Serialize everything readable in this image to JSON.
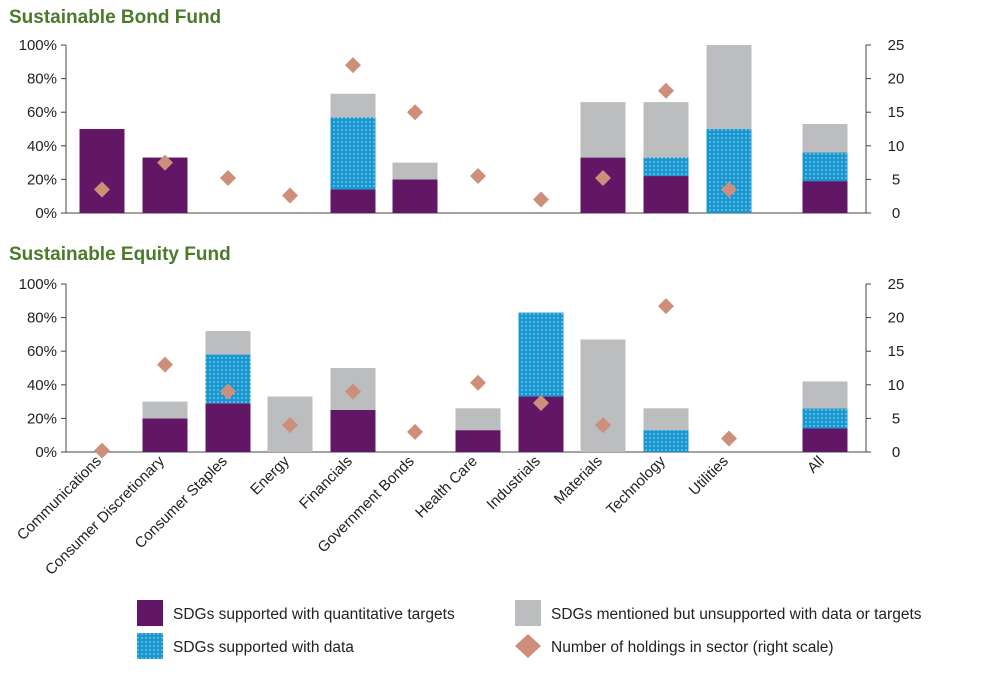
{
  "colors": {
    "quantitative": "#611766",
    "data": "#1896d0",
    "data_dots": "#bfe6f5",
    "mentioned": "#bcbdbf",
    "holdings": "#cd8f7a",
    "title": "#4c7a2b",
    "axis": "#444444"
  },
  "legend": {
    "quantitative": "SDGs supported with quantitative targets",
    "data": "SDGs supported with data",
    "mentioned": "SDGs mentioned but unsupported with data or targets",
    "holdings": "Number of holdings in sector (right scale)"
  },
  "chart_data": [
    {
      "type": "bar",
      "stacked": true,
      "title": "Sustainable Bond Fund",
      "categories": [
        "Communications",
        "Consumer Discretionary",
        "Consumer Staples",
        "Energy",
        "Financials",
        "Government Bonds",
        "Health Care",
        "Industrials",
        "Materials",
        "Technology",
        "Utilities",
        "All"
      ],
      "y_ticks": [
        "0%",
        "20%",
        "40%",
        "60%",
        "80%",
        "100%"
      ],
      "y2_ticks": [
        "0",
        "5",
        "10",
        "15",
        "20",
        "25"
      ],
      "ylim": [
        0,
        100
      ],
      "y2lim": [
        0,
        25
      ],
      "series": [
        {
          "name": "SDGs supported with quantitative targets",
          "key": "quantitative",
          "values": [
            50,
            33,
            0,
            0,
            14,
            20,
            0,
            0,
            33,
            22,
            0,
            19
          ]
        },
        {
          "name": "SDGs supported with data",
          "key": "data",
          "values": [
            0,
            0,
            0,
            0,
            43,
            0,
            0,
            0,
            0,
            11,
            50,
            17
          ]
        },
        {
          "name": "SDGs mentioned but unsupported with data or targets",
          "key": "mentioned",
          "values": [
            0,
            0,
            0,
            0,
            14,
            10,
            0,
            0,
            33,
            33,
            50,
            17
          ]
        }
      ],
      "holdings": [
        3.5,
        7.5,
        5.2,
        2.6,
        22,
        15,
        5.5,
        2,
        5.2,
        18.2,
        3.5,
        null
      ]
    },
    {
      "type": "bar",
      "stacked": true,
      "title": "Sustainable Equity Fund",
      "categories": [
        "Communications",
        "Consumer Discretionary",
        "Consumer Staples",
        "Energy",
        "Financials",
        "Government Bonds",
        "Health Care",
        "Industrials",
        "Materials",
        "Technology",
        "Utilities",
        "All"
      ],
      "y_ticks": [
        "0%",
        "20%",
        "40%",
        "60%",
        "80%",
        "100%"
      ],
      "y2_ticks": [
        "0",
        "5",
        "10",
        "15",
        "20",
        "25"
      ],
      "ylim": [
        0,
        100
      ],
      "y2lim": [
        0,
        25
      ],
      "series": [
        {
          "name": "SDGs supported with quantitative targets",
          "key": "quantitative",
          "values": [
            0,
            20,
            29,
            0,
            25,
            0,
            13,
            33,
            0,
            0,
            0,
            14
          ]
        },
        {
          "name": "SDGs supported with data",
          "key": "data",
          "values": [
            0,
            0,
            29,
            0,
            0,
            0,
            0,
            50,
            0,
            13,
            0,
            12
          ]
        },
        {
          "name": "SDGs mentioned but unsupported with data or targets",
          "key": "mentioned",
          "values": [
            0,
            10,
            14,
            33,
            25,
            0,
            13,
            0,
            67,
            13,
            0,
            16
          ]
        }
      ],
      "holdings": [
        0.2,
        13,
        9,
        4,
        9,
        3,
        10.3,
        7.3,
        4,
        21.7,
        2,
        null
      ]
    }
  ]
}
